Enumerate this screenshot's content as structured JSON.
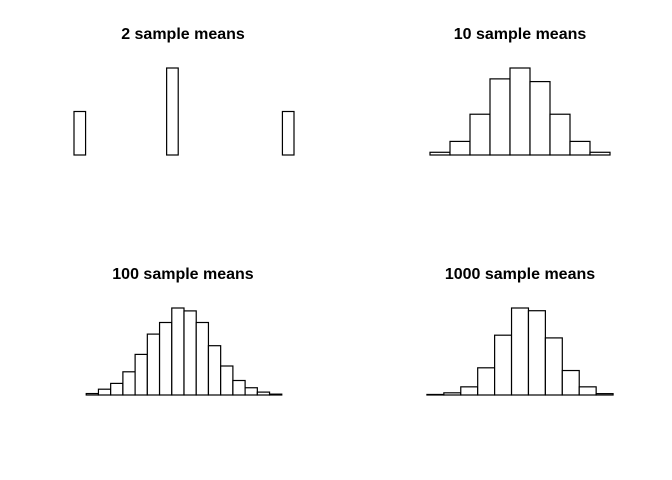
{
  "chart_data": [
    {
      "type": "bar",
      "title": "2 sample means",
      "xlabel": "",
      "ylabel": "",
      "axes": false,
      "grid": false,
      "values": [
        2,
        0,
        0,
        0,
        0,
        0,
        0,
        0,
        4,
        0,
        0,
        0,
        0,
        0,
        0,
        0,
        0,
        0,
        2
      ]
    },
    {
      "type": "bar",
      "title": "10 sample means",
      "xlabel": "",
      "ylabel": "",
      "axes": false,
      "grid": false,
      "values": [
        0,
        1,
        5,
        15,
        28,
        32,
        27,
        15,
        5,
        1,
        0
      ]
    },
    {
      "type": "bar",
      "title": "100 sample means",
      "xlabel": "",
      "ylabel": "",
      "axes": false,
      "grid": false,
      "values": [
        0,
        0.5,
        2,
        4,
        8,
        14,
        21,
        25,
        30,
        29,
        25,
        17,
        10,
        5,
        2.5,
        1,
        0.3,
        0
      ]
    },
    {
      "type": "bar",
      "title": "1000 sample means",
      "xlabel": "",
      "ylabel": "",
      "axes": false,
      "grid": false,
      "values": [
        0,
        0.2,
        0.8,
        3,
        10,
        22,
        32,
        31,
        21,
        9,
        3,
        0.5,
        0
      ]
    }
  ]
}
